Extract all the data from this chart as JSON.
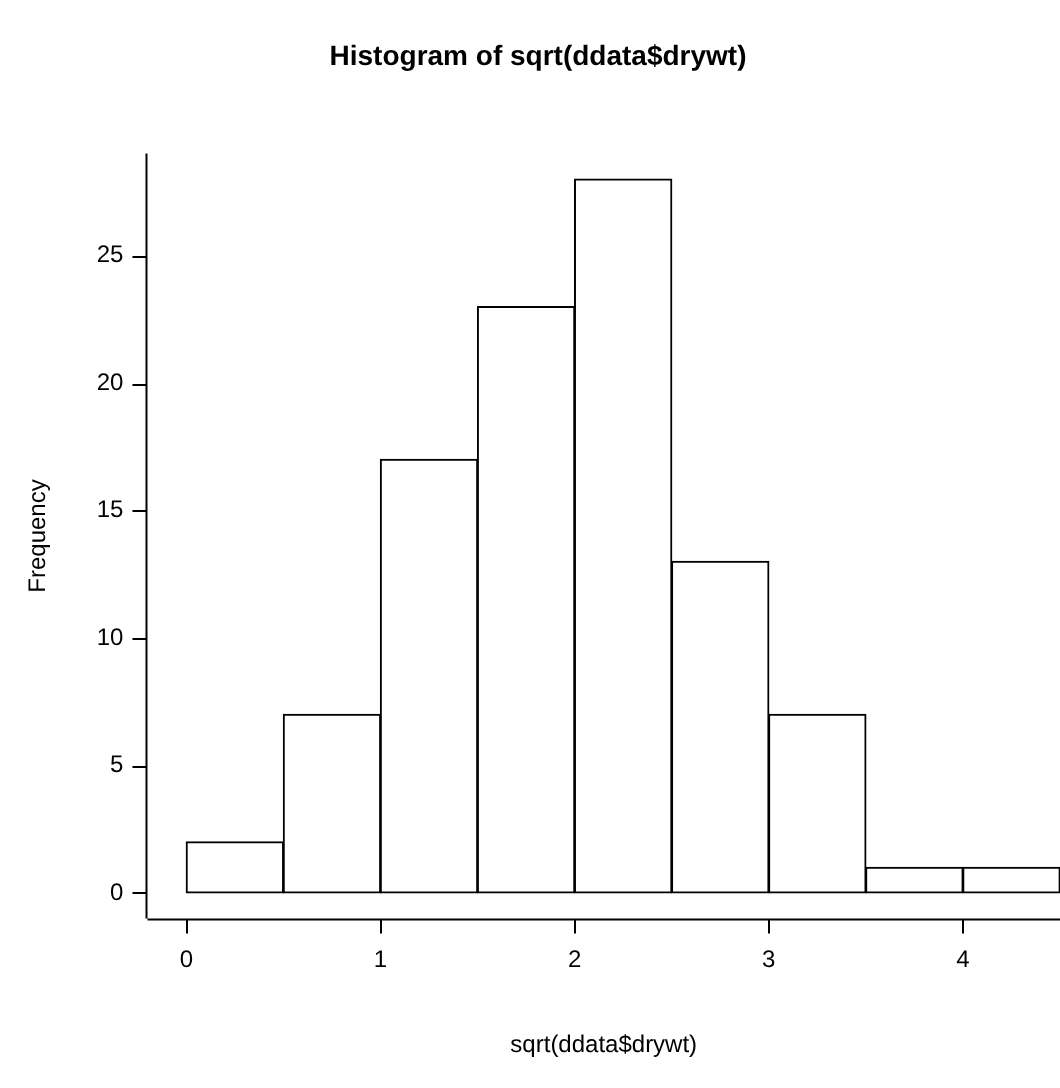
{
  "chart_data": {
    "type": "histogram",
    "title": "Histogram of sqrt(ddata$drywt)",
    "xlabel": "sqrt(ddata$drywt)",
    "ylabel": "Frequency",
    "bins": [
      0,
      0.5,
      1,
      1.5,
      2,
      2.5,
      3,
      3.5,
      4,
      4.5
    ],
    "values": [
      2,
      7,
      17,
      23,
      28,
      13,
      7,
      1,
      1
    ],
    "color": "#ffffff",
    "xlim": [
      -0.2,
      4.5
    ],
    "xticks": [
      0,
      1,
      2,
      3,
      4
    ],
    "ylim": [
      -1,
      29
    ],
    "yticks": [
      0,
      5,
      10,
      15,
      20,
      25
    ],
    "grid": false,
    "legend": false
  }
}
